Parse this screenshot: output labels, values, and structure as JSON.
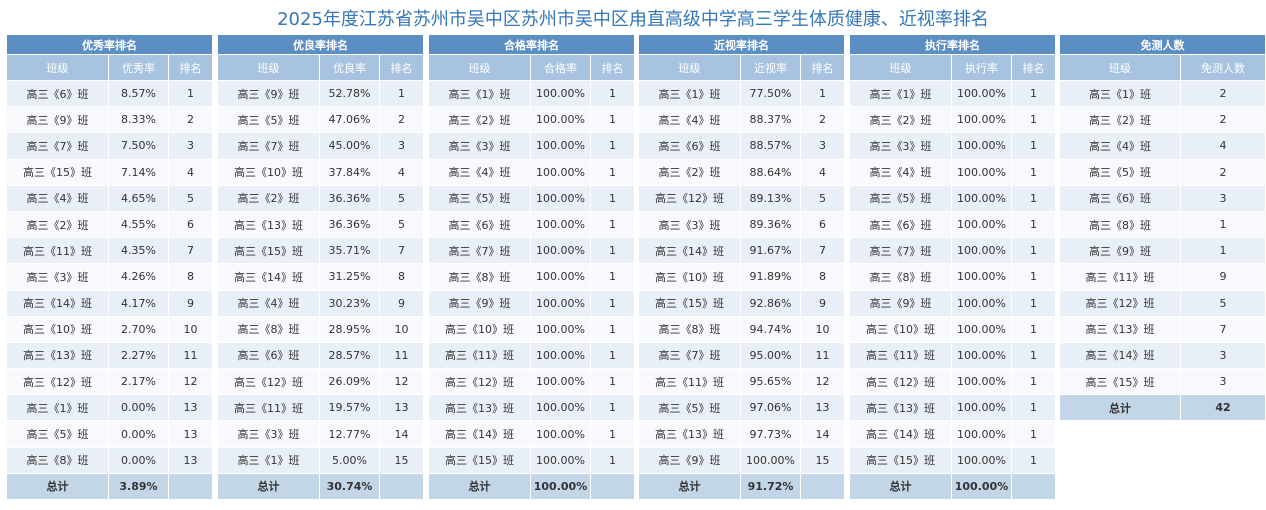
{
  "header": {
    "title": "2025年度江苏省苏州市吴中区苏州市吴中区甪直高级中学高三学生体质健康、近视率排名"
  },
  "tables": [
    {
      "title": "优秀率排名",
      "columns": [
        "班级",
        "优秀率",
        "排名"
      ],
      "rows": [
        [
          "高三《6》班",
          "8.57%",
          "1"
        ],
        [
          "高三《9》班",
          "8.33%",
          "2"
        ],
        [
          "高三《7》班",
          "7.50%",
          "3"
        ],
        [
          "高三《15》班",
          "7.14%",
          "4"
        ],
        [
          "高三《4》班",
          "4.65%",
          "5"
        ],
        [
          "高三《2》班",
          "4.55%",
          "6"
        ],
        [
          "高三《11》班",
          "4.35%",
          "7"
        ],
        [
          "高三《3》班",
          "4.26%",
          "8"
        ],
        [
          "高三《14》班",
          "4.17%",
          "9"
        ],
        [
          "高三《10》班",
          "2.70%",
          "10"
        ],
        [
          "高三《13》班",
          "2.27%",
          "11"
        ],
        [
          "高三《12》班",
          "2.17%",
          "12"
        ],
        [
          "高三《1》班",
          "0.00%",
          "13"
        ],
        [
          "高三《5》班",
          "0.00%",
          "13"
        ],
        [
          "高三《8》班",
          "0.00%",
          "13"
        ]
      ],
      "total": {
        "label": "总计",
        "value": "3.89%"
      }
    },
    {
      "title": "优良率排名",
      "columns": [
        "班级",
        "优良率",
        "排名"
      ],
      "rows": [
        [
          "高三《9》班",
          "52.78%",
          "1"
        ],
        [
          "高三《5》班",
          "47.06%",
          "2"
        ],
        [
          "高三《7》班",
          "45.00%",
          "3"
        ],
        [
          "高三《10》班",
          "37.84%",
          "4"
        ],
        [
          "高三《2》班",
          "36.36%",
          "5"
        ],
        [
          "高三《13》班",
          "36.36%",
          "5"
        ],
        [
          "高三《15》班",
          "35.71%",
          "7"
        ],
        [
          "高三《14》班",
          "31.25%",
          "8"
        ],
        [
          "高三《4》班",
          "30.23%",
          "9"
        ],
        [
          "高三《8》班",
          "28.95%",
          "10"
        ],
        [
          "高三《6》班",
          "28.57%",
          "11"
        ],
        [
          "高三《12》班",
          "26.09%",
          "12"
        ],
        [
          "高三《11》班",
          "19.57%",
          "13"
        ],
        [
          "高三《3》班",
          "12.77%",
          "14"
        ],
        [
          "高三《1》班",
          "5.00%",
          "15"
        ]
      ],
      "total": {
        "label": "总计",
        "value": "30.74%"
      }
    },
    {
      "title": "合格率排名",
      "columns": [
        "班级",
        "合格率",
        "排名"
      ],
      "rows": [
        [
          "高三《1》班",
          "100.00%",
          "1"
        ],
        [
          "高三《2》班",
          "100.00%",
          "1"
        ],
        [
          "高三《3》班",
          "100.00%",
          "1"
        ],
        [
          "高三《4》班",
          "100.00%",
          "1"
        ],
        [
          "高三《5》班",
          "100.00%",
          "1"
        ],
        [
          "高三《6》班",
          "100.00%",
          "1"
        ],
        [
          "高三《7》班",
          "100.00%",
          "1"
        ],
        [
          "高三《8》班",
          "100.00%",
          "1"
        ],
        [
          "高三《9》班",
          "100.00%",
          "1"
        ],
        [
          "高三《10》班",
          "100.00%",
          "1"
        ],
        [
          "高三《11》班",
          "100.00%",
          "1"
        ],
        [
          "高三《12》班",
          "100.00%",
          "1"
        ],
        [
          "高三《13》班",
          "100.00%",
          "1"
        ],
        [
          "高三《14》班",
          "100.00%",
          "1"
        ],
        [
          "高三《15》班",
          "100.00%",
          "1"
        ]
      ],
      "total": {
        "label": "总计",
        "value": "100.00%"
      }
    },
    {
      "title": "近视率排名",
      "columns": [
        "班级",
        "近视率",
        "排名"
      ],
      "rows": [
        [
          "高三《1》班",
          "77.50%",
          "1"
        ],
        [
          "高三《4》班",
          "88.37%",
          "2"
        ],
        [
          "高三《6》班",
          "88.57%",
          "3"
        ],
        [
          "高三《2》班",
          "88.64%",
          "4"
        ],
        [
          "高三《12》班",
          "89.13%",
          "5"
        ],
        [
          "高三《3》班",
          "89.36%",
          "6"
        ],
        [
          "高三《14》班",
          "91.67%",
          "7"
        ],
        [
          "高三《10》班",
          "91.89%",
          "8"
        ],
        [
          "高三《15》班",
          "92.86%",
          "9"
        ],
        [
          "高三《8》班",
          "94.74%",
          "10"
        ],
        [
          "高三《7》班",
          "95.00%",
          "11"
        ],
        [
          "高三《11》班",
          "95.65%",
          "12"
        ],
        [
          "高三《5》班",
          "97.06%",
          "13"
        ],
        [
          "高三《13》班",
          "97.73%",
          "14"
        ],
        [
          "高三《9》班",
          "100.00%",
          "15"
        ]
      ],
      "total": {
        "label": "总计",
        "value": "91.72%"
      }
    },
    {
      "title": "执行率排名",
      "columns": [
        "班级",
        "执行率",
        "排名"
      ],
      "rows": [
        [
          "高三《1》班",
          "100.00%",
          "1"
        ],
        [
          "高三《2》班",
          "100.00%",
          "1"
        ],
        [
          "高三《3》班",
          "100.00%",
          "1"
        ],
        [
          "高三《4》班",
          "100.00%",
          "1"
        ],
        [
          "高三《5》班",
          "100.00%",
          "1"
        ],
        [
          "高三《6》班",
          "100.00%",
          "1"
        ],
        [
          "高三《7》班",
          "100.00%",
          "1"
        ],
        [
          "高三《8》班",
          "100.00%",
          "1"
        ],
        [
          "高三《9》班",
          "100.00%",
          "1"
        ],
        [
          "高三《10》班",
          "100.00%",
          "1"
        ],
        [
          "高三《11》班",
          "100.00%",
          "1"
        ],
        [
          "高三《12》班",
          "100.00%",
          "1"
        ],
        [
          "高三《13》班",
          "100.00%",
          "1"
        ],
        [
          "高三《14》班",
          "100.00%",
          "1"
        ],
        [
          "高三《15》班",
          "100.00%",
          "1"
        ]
      ],
      "total": {
        "label": "总计",
        "value": "100.00%"
      }
    },
    {
      "title": "免测人数",
      "columns": [
        "班级",
        "免测人数"
      ],
      "rows": [
        [
          "高三《1》班",
          "2"
        ],
        [
          "高三《2》班",
          "2"
        ],
        [
          "高三《4》班",
          "4"
        ],
        [
          "高三《5》班",
          "2"
        ],
        [
          "高三《6》班",
          "3"
        ],
        [
          "高三《8》班",
          "1"
        ],
        [
          "高三《9》班",
          "1"
        ],
        [
          "高三《11》班",
          "9"
        ],
        [
          "高三《12》班",
          "5"
        ],
        [
          "高三《13》班",
          "7"
        ],
        [
          "高三《14》班",
          "3"
        ],
        [
          "高三《15》班",
          "3"
        ]
      ],
      "total": {
        "label": "总计",
        "value": "42"
      }
    }
  ]
}
